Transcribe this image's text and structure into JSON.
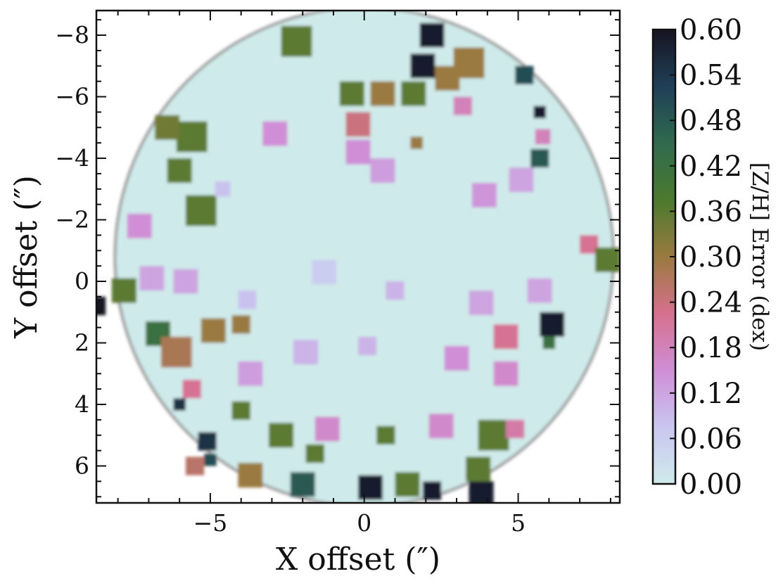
{
  "chart_data": {
    "type": "heatmap",
    "title": "",
    "xlabel": "X offset (″)",
    "ylabel": "Y offset (″)",
    "xlim": [
      -8.7,
      8.3
    ],
    "ylim": [
      -8.8,
      7.2
    ],
    "y_inverted": true,
    "xticks": [
      -5,
      0,
      5
    ],
    "xtick_labels": [
      "−5",
      "0",
      "5"
    ],
    "yticks": [
      -8,
      -6,
      -4,
      -2,
      0,
      2,
      4,
      6
    ],
    "ytick_labels": [
      "−8",
      "−6",
      "−4",
      "−2",
      "0",
      "2",
      "4",
      "6"
    ],
    "colorbar": {
      "label": "[Z/H] Error (dex)",
      "range": [
        0.0,
        0.6
      ],
      "ticks": [
        0.0,
        0.06,
        0.12,
        0.18,
        0.24,
        0.3,
        0.36,
        0.42,
        0.48,
        0.54,
        0.6
      ],
      "tick_labels": [
        "0.00",
        "0.06",
        "0.12",
        "0.18",
        "0.24",
        "0.30",
        "0.36",
        "0.42",
        "0.48",
        "0.54",
        "0.60"
      ],
      "colormap": "cubehelix_r",
      "colormap_stops": [
        "#cfeaea",
        "#c9c6f0",
        "#cf8ed6",
        "#d6708e",
        "#9a7a3f",
        "#4b7a2e",
        "#2f6a4e",
        "#1f3f57",
        "#171421"
      ]
    },
    "map_shape": "circular region of spatial bins, radius about 8 arcsec, centred near (0, -0.8)",
    "background_error": 0.0,
    "highlighted_bins": [
      {
        "x": -2.2,
        "y": -7.8,
        "size": 1.0,
        "value": 0.36
      },
      {
        "x": 2.2,
        "y": -8.0,
        "size": 0.8,
        "value": 0.58
      },
      {
        "x": 1.9,
        "y": -7.0,
        "size": 0.8,
        "value": 0.58
      },
      {
        "x": 3.4,
        "y": -7.1,
        "size": 1.0,
        "value": 0.3
      },
      {
        "x": 0.6,
        "y": -6.1,
        "size": 0.8,
        "value": 0.3
      },
      {
        "x": -0.4,
        "y": -6.1,
        "size": 0.8,
        "value": 0.36
      },
      {
        "x": 1.6,
        "y": -6.1,
        "size": 0.8,
        "value": 0.36
      },
      {
        "x": 2.7,
        "y": -6.6,
        "size": 0.8,
        "value": 0.3
      },
      {
        "x": 5.2,
        "y": -6.7,
        "size": 0.6,
        "value": 0.5
      },
      {
        "x": -0.2,
        "y": -5.1,
        "size": 0.8,
        "value": 0.24
      },
      {
        "x": -5.6,
        "y": -4.7,
        "size": 1.0,
        "value": 0.36
      },
      {
        "x": -6.4,
        "y": -5.0,
        "size": 0.8,
        "value": 0.34
      },
      {
        "x": -5.3,
        "y": -2.3,
        "size": 1.0,
        "value": 0.36
      },
      {
        "x": -6.0,
        "y": -3.6,
        "size": 0.8,
        "value": 0.36
      },
      {
        "x": 5.7,
        "y": -4.0,
        "size": 0.6,
        "value": 0.48
      },
      {
        "x": 5.7,
        "y": -5.5,
        "size": 0.4,
        "value": 0.58
      },
      {
        "x": 5.8,
        "y": -4.7,
        "size": 0.5,
        "value": 0.18
      },
      {
        "x": 1.7,
        "y": -4.5,
        "size": 0.4,
        "value": 0.3
      },
      {
        "x": -2.9,
        "y": -4.8,
        "size": 0.8,
        "value": 0.15
      },
      {
        "x": -0.2,
        "y": -4.2,
        "size": 0.8,
        "value": 0.15
      },
      {
        "x": 0.6,
        "y": -3.6,
        "size": 0.8,
        "value": 0.13
      },
      {
        "x": -7.3,
        "y": -1.8,
        "size": 0.8,
        "value": 0.15
      },
      {
        "x": -8.7,
        "y": 0.8,
        "size": 0.6,
        "value": 0.6
      },
      {
        "x": -7.8,
        "y": 0.3,
        "size": 0.8,
        "value": 0.36
      },
      {
        "x": -5.8,
        "y": 0.0,
        "size": 0.8,
        "value": 0.12
      },
      {
        "x": -6.9,
        "y": -0.1,
        "size": 0.8,
        "value": 0.12
      },
      {
        "x": 7.3,
        "y": -1.2,
        "size": 0.6,
        "value": 0.22
      },
      {
        "x": 7.9,
        "y": -0.7,
        "size": 0.8,
        "value": 0.36
      },
      {
        "x": -6.7,
        "y": 1.7,
        "size": 0.8,
        "value": 0.42
      },
      {
        "x": -6.1,
        "y": 2.3,
        "size": 1.0,
        "value": 0.28
      },
      {
        "x": -4.9,
        "y": 1.6,
        "size": 0.8,
        "value": 0.3
      },
      {
        "x": -4.0,
        "y": 1.4,
        "size": 0.6,
        "value": 0.3
      },
      {
        "x": -5.6,
        "y": 3.5,
        "size": 0.6,
        "value": 0.22
      },
      {
        "x": 4.6,
        "y": 1.8,
        "size": 0.8,
        "value": 0.22
      },
      {
        "x": 6.1,
        "y": 1.4,
        "size": 0.8,
        "value": 0.58
      },
      {
        "x": 6.0,
        "y": 2.0,
        "size": 0.4,
        "value": 0.42
      },
      {
        "x": -4.0,
        "y": 4.2,
        "size": 0.6,
        "value": 0.36
      },
      {
        "x": -6.0,
        "y": 4.0,
        "size": 0.4,
        "value": 0.55
      },
      {
        "x": -2.7,
        "y": 5.0,
        "size": 0.8,
        "value": 0.36
      },
      {
        "x": -5.1,
        "y": 5.2,
        "size": 0.6,
        "value": 0.55
      },
      {
        "x": -5.0,
        "y": 5.8,
        "size": 0.4,
        "value": 0.5
      },
      {
        "x": -1.6,
        "y": 5.6,
        "size": 0.6,
        "value": 0.36
      },
      {
        "x": 0.7,
        "y": 5.0,
        "size": 0.6,
        "value": 0.36
      },
      {
        "x": 4.2,
        "y": 5.0,
        "size": 1.0,
        "value": 0.36
      },
      {
        "x": 3.7,
        "y": 6.1,
        "size": 0.8,
        "value": 0.36
      },
      {
        "x": -3.7,
        "y": 6.3,
        "size": 0.8,
        "value": 0.3
      },
      {
        "x": -2.0,
        "y": 6.6,
        "size": 0.8,
        "value": 0.48
      },
      {
        "x": -5.5,
        "y": 6.0,
        "size": 0.6,
        "value": 0.26
      },
      {
        "x": 0.2,
        "y": 6.7,
        "size": 0.8,
        "value": 0.58
      },
      {
        "x": 1.4,
        "y": 6.6,
        "size": 0.8,
        "value": 0.36
      },
      {
        "x": 2.2,
        "y": 6.8,
        "size": 0.6,
        "value": 0.58
      },
      {
        "x": 3.8,
        "y": 6.9,
        "size": 0.8,
        "value": 0.58
      },
      {
        "x": 4.9,
        "y": 4.8,
        "size": 0.6,
        "value": 0.2
      },
      {
        "x": 2.5,
        "y": 4.7,
        "size": 0.8,
        "value": 0.16
      },
      {
        "x": -1.2,
        "y": 4.8,
        "size": 0.8,
        "value": 0.16
      },
      {
        "x": -3.7,
        "y": 3.0,
        "size": 0.8,
        "value": 0.13
      },
      {
        "x": 1.0,
        "y": 0.3,
        "size": 0.6,
        "value": 0.1
      },
      {
        "x": 3.8,
        "y": 0.7,
        "size": 0.8,
        "value": 0.12
      },
      {
        "x": 5.7,
        "y": 0.3,
        "size": 0.8,
        "value": 0.12
      },
      {
        "x": 3.9,
        "y": -2.8,
        "size": 0.8,
        "value": 0.14
      },
      {
        "x": 5.1,
        "y": -3.3,
        "size": 0.8,
        "value": 0.12
      },
      {
        "x": 3.2,
        "y": -5.7,
        "size": 0.6,
        "value": 0.18
      },
      {
        "x": -4.6,
        "y": -3.0,
        "size": 0.5,
        "value": 0.08
      },
      {
        "x": -3.8,
        "y": 0.6,
        "size": 0.6,
        "value": 0.08
      },
      {
        "x": -1.3,
        "y": -0.3,
        "size": 0.8,
        "value": 0.06
      },
      {
        "x": 0.1,
        "y": 2.1,
        "size": 0.6,
        "value": 0.1
      },
      {
        "x": -1.9,
        "y": 2.3,
        "size": 0.8,
        "value": 0.1
      },
      {
        "x": 3.0,
        "y": 2.5,
        "size": 0.8,
        "value": 0.15
      },
      {
        "x": 4.6,
        "y": 3.0,
        "size": 0.8,
        "value": 0.16
      }
    ]
  }
}
